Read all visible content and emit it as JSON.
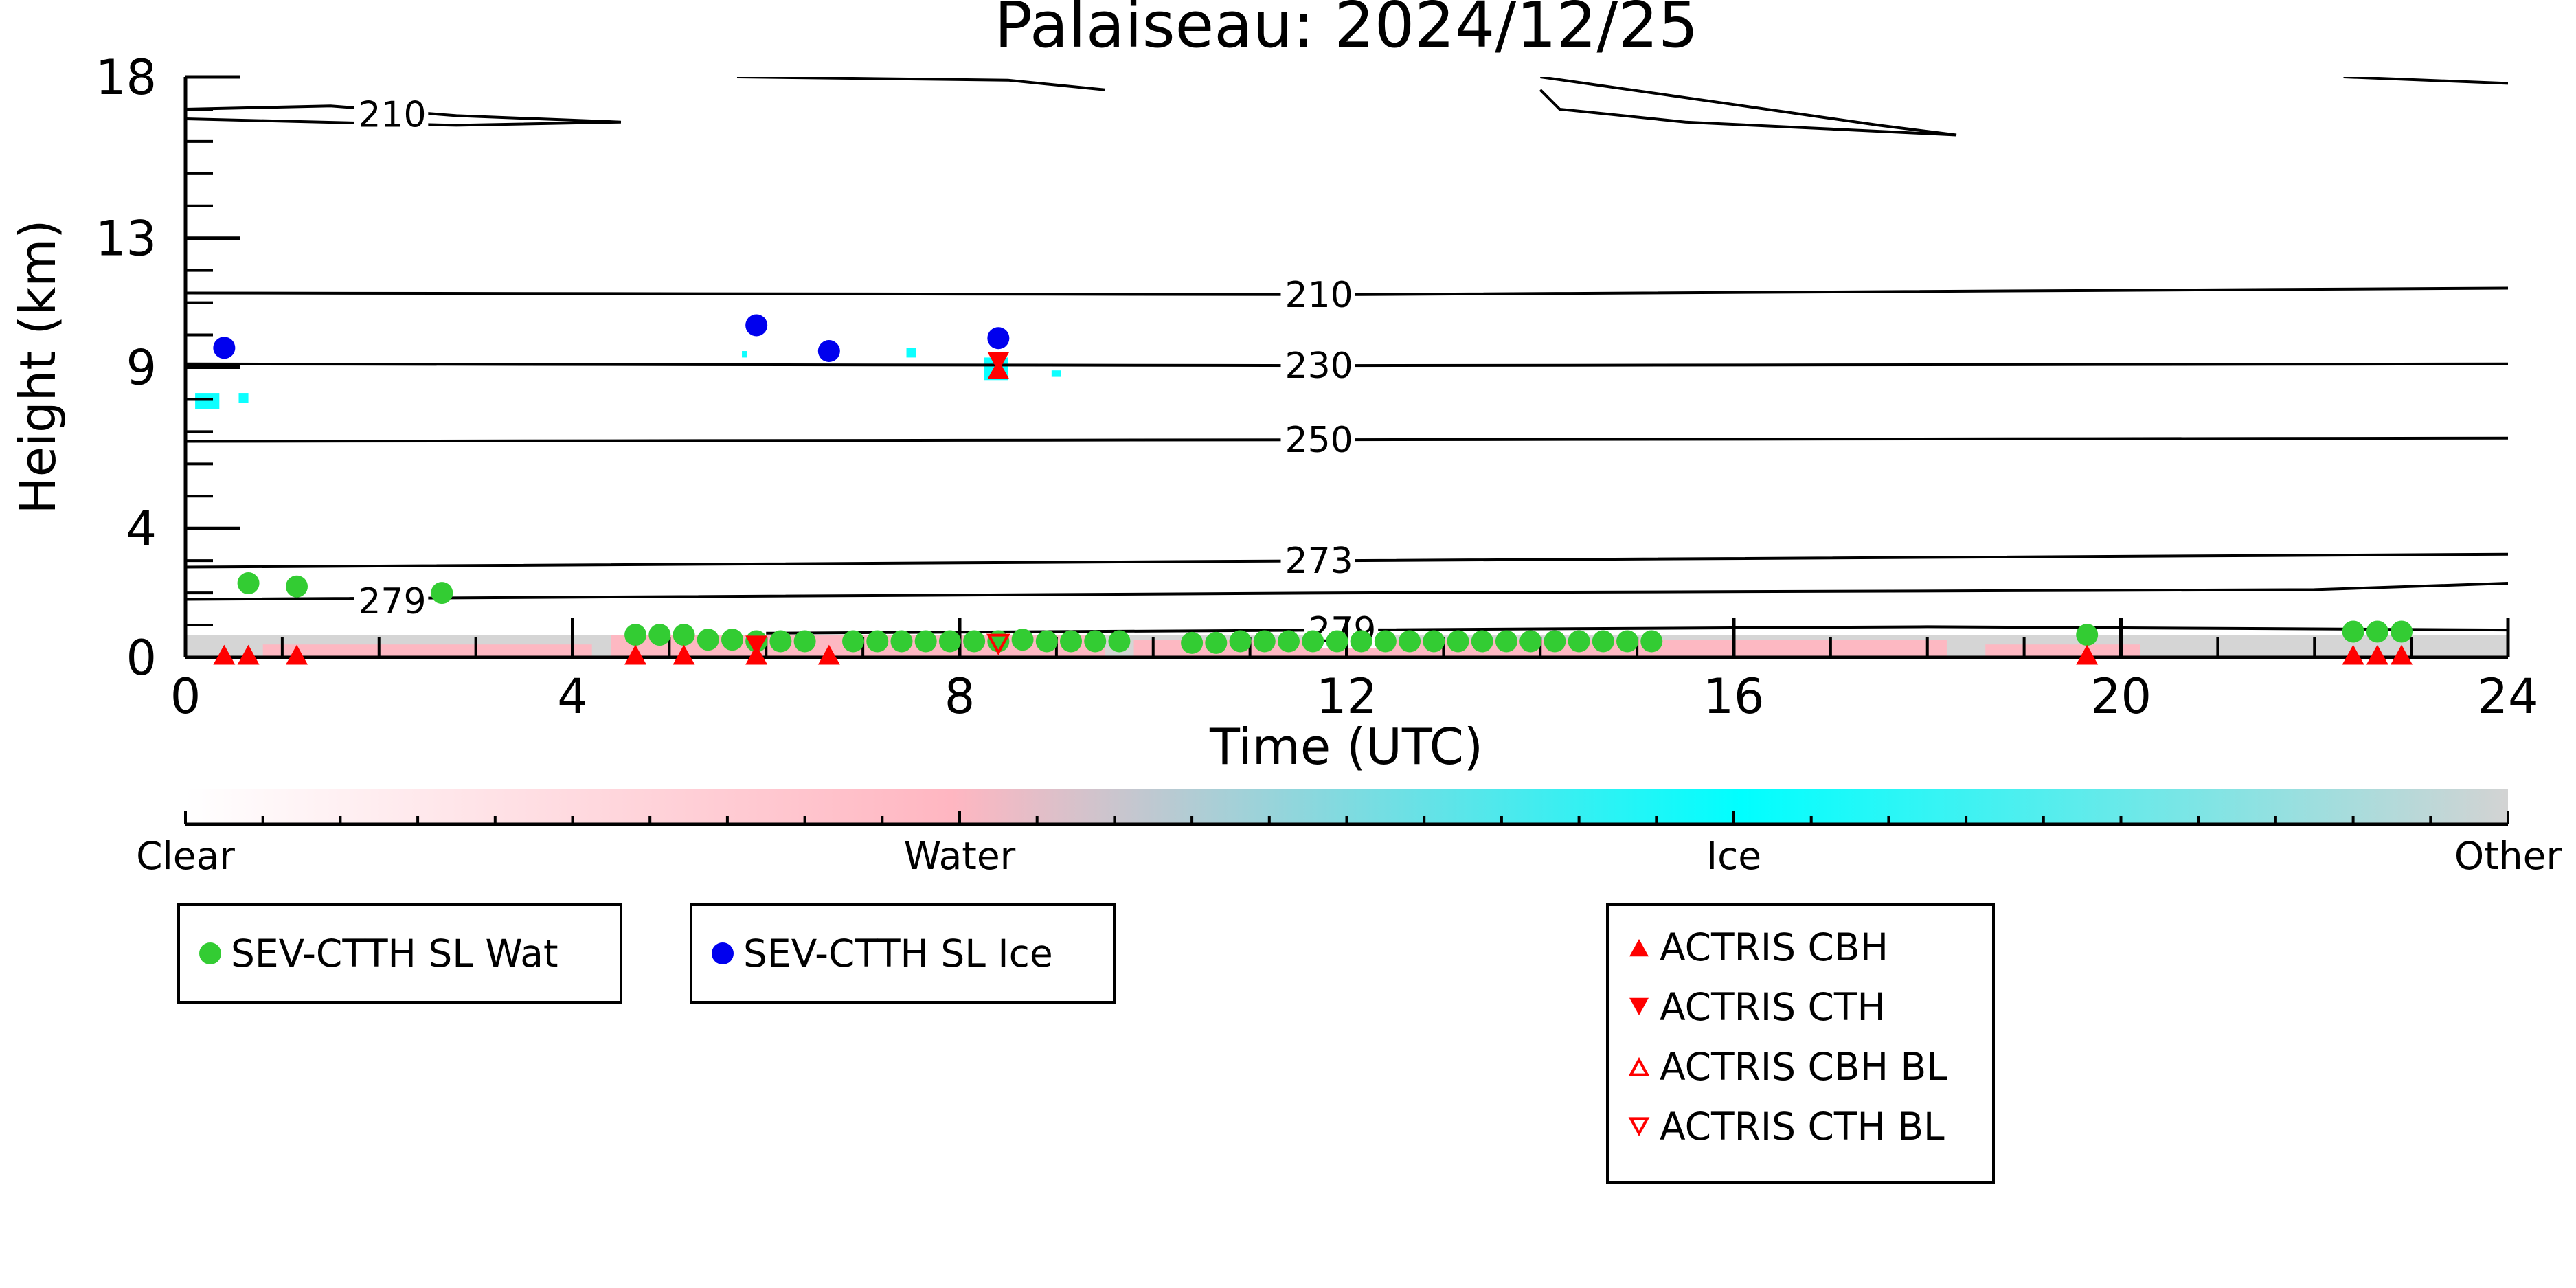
{
  "chart_data": {
    "type": "scatter",
    "title": "Palaiseau: 2024/12/25",
    "xlabel": "Time (UTC)",
    "ylabel": "Height (km)",
    "xlim": [
      0,
      24
    ],
    "ylim": [
      0,
      18
    ],
    "xticks": [
      0,
      4,
      8,
      12,
      16,
      20,
      24
    ],
    "yticks": [
      0,
      4,
      9,
      13,
      18
    ],
    "colorbar": {
      "labels": [
        "Clear",
        "Water",
        "Ice",
        "Other"
      ],
      "colors": [
        "#ffffff",
        "#ffb6c1",
        "#00ffff",
        "#d3d3d3"
      ]
    },
    "temperature_contours": [
      {
        "label": "210",
        "points": [
          [
            0,
            11.3
          ],
          [
            12,
            11.25
          ],
          [
            24,
            11.45
          ]
        ]
      },
      {
        "label": "230",
        "points": [
          [
            0,
            9.1
          ],
          [
            12,
            9.05
          ],
          [
            24,
            9.1
          ]
        ]
      },
      {
        "label": "250",
        "points": [
          [
            0,
            6.7
          ],
          [
            12,
            6.75
          ],
          [
            24,
            6.8
          ]
        ]
      },
      {
        "label": "273",
        "points": [
          [
            0,
            2.8
          ],
          [
            12,
            3.0
          ],
          [
            24,
            3.2
          ]
        ]
      },
      {
        "label": "279",
        "points": [
          [
            0,
            1.8
          ],
          [
            12,
            2.0
          ],
          [
            22,
            2.1
          ],
          [
            24,
            2.3
          ]
        ]
      },
      {
        "label": "279",
        "points": [
          [
            6,
            0.75
          ],
          [
            12,
            0.85
          ],
          [
            18,
            0.95
          ],
          [
            24,
            0.85
          ]
        ]
      },
      {
        "label": "210",
        "points": [
          [
            0,
            17.0
          ],
          [
            1.5,
            17.1
          ],
          [
            2.8,
            16.8
          ],
          [
            4.5,
            16.6
          ],
          [
            2.8,
            16.5
          ],
          [
            0,
            16.7
          ]
        ]
      },
      {
        "label": "",
        "points": [
          [
            5.7,
            18.0
          ],
          [
            8.5,
            17.9
          ],
          [
            9.5,
            17.6
          ]
        ]
      },
      {
        "label": "",
        "points": [
          [
            14,
            18.0
          ],
          [
            17.5,
            16.5
          ],
          [
            18.3,
            16.2
          ],
          [
            15.5,
            16.6
          ],
          [
            14.2,
            17.0
          ],
          [
            14,
            17.6
          ]
        ]
      },
      {
        "label": "",
        "points": [
          [
            22.3,
            18.0
          ],
          [
            24,
            17.8
          ]
        ]
      }
    ],
    "series": [
      {
        "name": "SEV-CTTH SL Wat",
        "color": "#33cc33",
        "marker": "circle",
        "x": [
          0.65,
          1.15,
          2.65,
          4.65,
          4.9,
          5.15,
          5.4,
          5.65,
          5.9,
          6.15,
          6.4,
          6.9,
          7.15,
          7.4,
          7.65,
          7.9,
          8.15,
          8.4,
          8.65,
          8.9,
          9.15,
          9.4,
          9.65,
          10.4,
          10.65,
          10.9,
          11.15,
          11.4,
          11.65,
          11.9,
          12.15,
          12.4,
          12.65,
          12.9,
          13.15,
          13.4,
          13.65,
          13.9,
          14.15,
          14.4,
          14.65,
          14.9,
          15.15,
          19.65,
          22.4,
          22.65,
          22.9
        ],
        "y": [
          2.3,
          2.2,
          2.0,
          0.7,
          0.7,
          0.7,
          0.55,
          0.55,
          0.5,
          0.5,
          0.5,
          0.5,
          0.5,
          0.5,
          0.5,
          0.5,
          0.5,
          0.5,
          0.55,
          0.5,
          0.5,
          0.5,
          0.5,
          0.45,
          0.45,
          0.5,
          0.5,
          0.5,
          0.5,
          0.5,
          0.5,
          0.5,
          0.5,
          0.5,
          0.5,
          0.5,
          0.5,
          0.5,
          0.5,
          0.5,
          0.5,
          0.5,
          0.5,
          0.7,
          0.8,
          0.8,
          0.8
        ]
      },
      {
        "name": "SEV-CTTH SL Ice",
        "color": "#0000ee",
        "marker": "circle",
        "x": [
          0.4,
          5.9,
          6.65,
          8.4
        ],
        "y": [
          9.6,
          10.3,
          9.5,
          9.9
        ]
      },
      {
        "name": "ACTRIS CBH",
        "color": "#ff0000",
        "marker": "triangle-up-filled",
        "x": [
          0.4,
          0.65,
          1.15,
          4.65,
          5.15,
          5.9,
          6.65,
          8.4,
          19.65,
          22.4,
          22.65,
          22.9
        ],
        "y": [
          0.05,
          0.05,
          0.05,
          0.05,
          0.05,
          0.05,
          0.05,
          8.9,
          0.05,
          0.05,
          0.05,
          0.05
        ]
      },
      {
        "name": "ACTRIS CTH",
        "color": "#ff0000",
        "marker": "triangle-down-filled",
        "x": [
          5.9,
          8.4
        ],
        "y": [
          0.4,
          9.2
        ]
      },
      {
        "name": "ACTRIS CBH BL",
        "color": "#ff0000",
        "marker": "triangle-up-open",
        "x": [],
        "y": []
      },
      {
        "name": "ACTRIS CTH BL",
        "color": "#ff0000",
        "marker": "triangle-down-open",
        "x": [
          8.4
        ],
        "y": [
          0.45
        ]
      }
    ],
    "cloud_regions": [
      {
        "phase": "Ice",
        "x0": 0.1,
        "x1": 0.35,
        "y0": 7.7,
        "y1": 8.2
      },
      {
        "phase": "Ice",
        "x0": 0.55,
        "x1": 0.65,
        "y0": 7.9,
        "y1": 8.2
      },
      {
        "phase": "Ice",
        "x0": 5.75,
        "x1": 5.8,
        "y0": 9.3,
        "y1": 9.5
      },
      {
        "phase": "Ice",
        "x0": 7.45,
        "x1": 7.55,
        "y0": 9.3,
        "y1": 9.6
      },
      {
        "phase": "Ice",
        "x0": 8.25,
        "x1": 8.5,
        "y0": 8.6,
        "y1": 9.3
      },
      {
        "phase": "Ice",
        "x0": 8.95,
        "x1": 9.05,
        "y0": 8.7,
        "y1": 8.9
      },
      {
        "phase": "Other",
        "x0": 0,
        "x1": 24,
        "y0": 0,
        "y1": 0.7
      },
      {
        "phase": "Water",
        "x0": 0.8,
        "x1": 4.2,
        "y0": 0,
        "y1": 0.4
      },
      {
        "phase": "Water",
        "x0": 4.4,
        "x1": 9.5,
        "y0": 0,
        "y1": 0.7
      },
      {
        "phase": "Water",
        "x0": 9.8,
        "x1": 18.2,
        "y0": 0,
        "y1": 0.55
      },
      {
        "phase": "Water",
        "x0": 18.6,
        "x1": 20.2,
        "y0": 0,
        "y1": 0.4
      }
    ]
  },
  "legends": [
    {
      "items": [
        {
          "label": "SEV-CTTH SL Wat",
          "marker": "dot",
          "color": "#33cc33"
        }
      ]
    },
    {
      "items": [
        {
          "label": "SEV-CTTH SL Ice",
          "marker": "dot",
          "color": "#0000ee"
        }
      ]
    },
    {
      "items": [
        {
          "label": "ACTRIS CBH",
          "marker": "tri-up",
          "color": "#ff0000"
        },
        {
          "label": "ACTRIS CTH",
          "marker": "tri-down",
          "color": "#ff0000"
        },
        {
          "label": "ACTRIS CBH BL",
          "marker": "tri-up-open",
          "color": "#ff0000"
        },
        {
          "label": "ACTRIS CTH BL",
          "marker": "tri-down-open",
          "color": "#ff0000"
        }
      ]
    }
  ]
}
